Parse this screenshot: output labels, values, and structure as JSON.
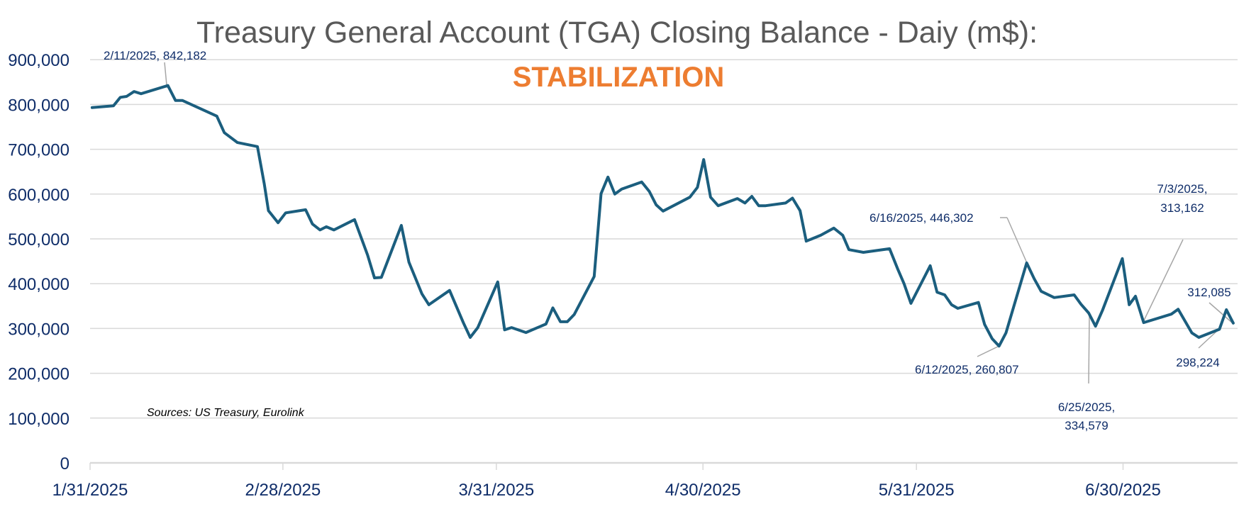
{
  "chart_data": {
    "type": "line",
    "title": "Treasury General Account (TGA) Closing Balance - Daiy  (m$):",
    "subtitle": "STABILIZATION",
    "source_note": "Sources: US Treasury, Eurolink",
    "xlabel": "",
    "ylabel": "",
    "ylim": [
      0,
      900000
    ],
    "x_start_date": "1/31/2025",
    "x_end_day": 167,
    "grid": true,
    "y_ticks": [
      "0",
      "100,000",
      "200,000",
      "300,000",
      "400,000",
      "500,000",
      "600,000",
      "700,000",
      "800,000",
      "900,000"
    ],
    "x_ticks": [
      {
        "label": "1/31/2025",
        "day": 0
      },
      {
        "label": "2/28/2025",
        "day": 28
      },
      {
        "label": "3/31/2025",
        "day": 59
      },
      {
        "label": "4/30/2025",
        "day": 89
      },
      {
        "label": "5/31/2025",
        "day": 120
      },
      {
        "label": "6/30/2025",
        "day": 150
      }
    ],
    "colors": {
      "line": "#1B5E7E",
      "grid": "#D9D9D9",
      "title": "#595959",
      "subtitle": "#ED7D31",
      "labels": "#0F2D69",
      "leader": "#A6A6A6"
    },
    "series": [
      {
        "name": "TGA Closing Balance",
        "x_days": [
          0.3,
          3.4,
          4.4,
          5.3,
          6.4,
          7.4,
          11.3,
          12.4,
          13.4,
          18.4,
          19.5,
          21.4,
          24.3,
          25.3,
          25.9,
          27.3,
          28.4,
          31.3,
          32.3,
          33.4,
          34.3,
          35.4,
          38.4,
          40.3,
          41.3,
          42.3,
          45.2,
          46.3,
          48.2,
          49.2,
          52.2,
          54.2,
          55.2,
          56.3,
          59.2,
          60.2,
          61.2,
          63.3,
          66.2,
          67.2,
          68.3,
          69.3,
          70.3,
          73.2,
          74.2,
          75.2,
          76.2,
          77.2,
          80.1,
          81.2,
          82.2,
          83.2,
          87.1,
          88.2,
          89.1,
          90.1,
          91.2,
          94.0,
          95.1,
          96.1,
          97.1,
          98.1,
          101.0,
          102.0,
          103.1,
          104.0,
          106.1,
          108.0,
          109.3,
          110.2,
          112.3,
          116.1,
          117.3,
          118.2,
          119.2,
          122.0,
          123.0,
          124.1,
          125.1,
          126.0,
          129.0,
          129.9,
          131.0,
          132.0,
          133.0,
          136.0,
          137.1,
          138.1,
          140.0,
          142.9,
          143.9,
          145.0,
          146.0,
          147.0,
          149.9,
          150.9,
          151.8,
          153.0,
          157.0,
          158.0,
          160.0,
          161.0,
          164.0,
          165.0,
          166.0
        ],
        "values": [
          793000,
          797000,
          816000,
          818000,
          829000,
          824000,
          842182,
          809000,
          809000,
          774000,
          737000,
          715000,
          706000,
          622000,
          563000,
          536000,
          558000,
          565000,
          533000,
          520000,
          527000,
          520000,
          543000,
          464000,
          413000,
          414000,
          530000,
          448000,
          377000,
          353000,
          385000,
          313000,
          280000,
          302000,
          404000,
          297000,
          302000,
          291000,
          310000,
          346000,
          315000,
          315000,
          331000,
          416000,
          601000,
          638000,
          600000,
          611000,
          627000,
          606000,
          576000,
          562000,
          593000,
          615000,
          677000,
          593000,
          574000,
          590000,
          580000,
          595000,
          574000,
          574000,
          580000,
          591000,
          563000,
          495000,
          508000,
          524000,
          508000,
          476000,
          470000,
          478000,
          432000,
          400000,
          356000,
          440000,
          381000,
          375000,
          353000,
          345000,
          358000,
          309000,
          277000,
          260807,
          290000,
          446302,
          411000,
          383000,
          369000,
          375000,
          354000,
          334579,
          305000,
          340000,
          456000,
          353000,
          372000,
          313162,
          332000,
          343000,
          290000,
          280000,
          298224,
          342000,
          312085
        ]
      }
    ],
    "annotations": [
      {
        "text": "2/11/2025,  842,182",
        "date": "2/11/2025",
        "value": 842182
      },
      {
        "text": "6/16/2025,  446,302",
        "date": "6/16/2025",
        "value": 446302
      },
      {
        "text": "6/12/2025,  260,807",
        "date": "6/12/2025",
        "value": 260807
      },
      {
        "line1": "6/25/2025,",
        "line2": "334,579",
        "date": "6/25/2025",
        "value": 334579
      },
      {
        "line1": "7/3/2025,",
        "line2": "313,162",
        "date": "7/3/2025",
        "value": 313162
      },
      {
        "text": "312,085",
        "value": 312085
      },
      {
        "text": "298,224",
        "value": 298224
      }
    ]
  }
}
